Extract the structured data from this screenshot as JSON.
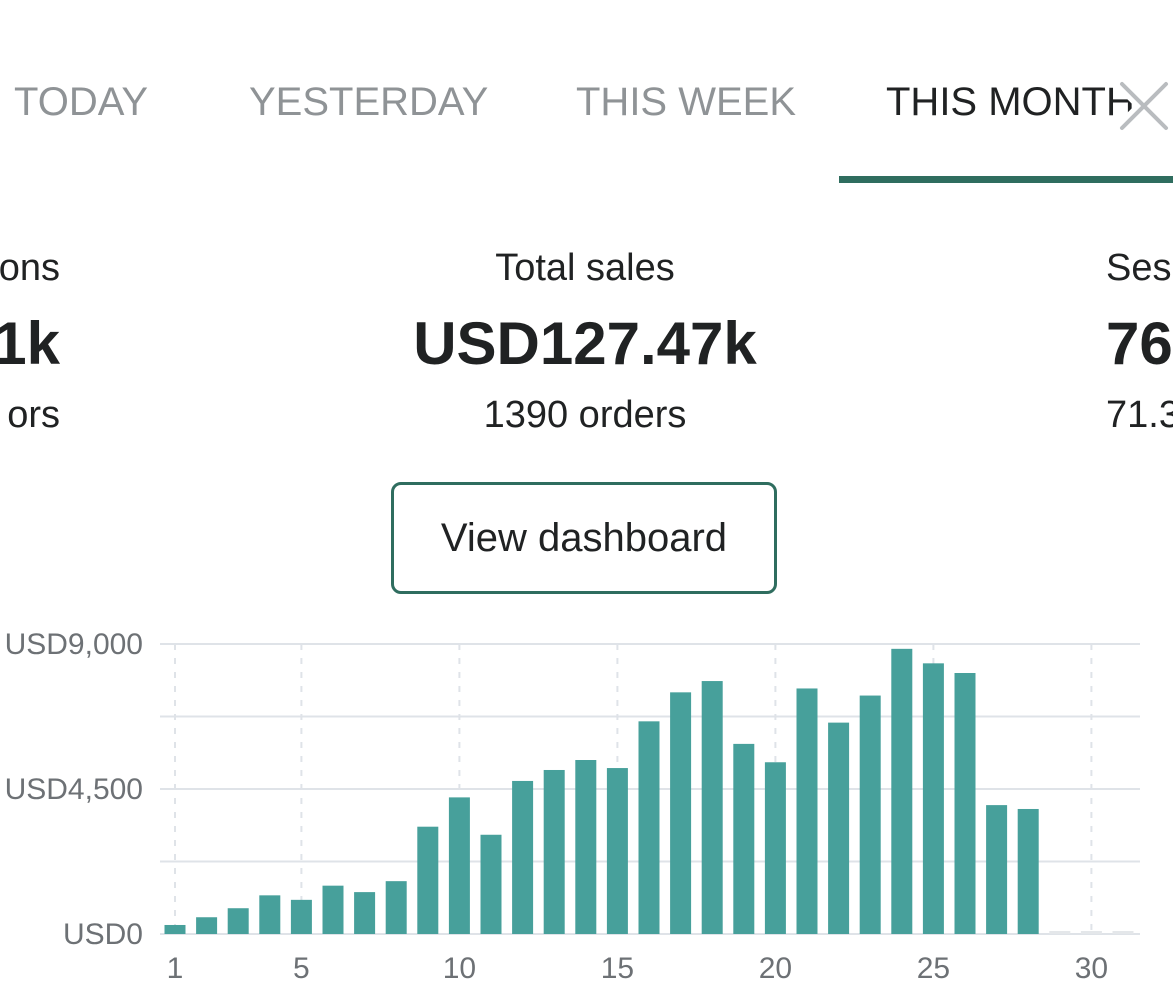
{
  "tabs": [
    {
      "label": "TODAY",
      "active": false
    },
    {
      "label": "YESTERDAY",
      "active": false
    },
    {
      "label": "THIS WEEK",
      "active": false
    },
    {
      "label": "THIS MONTH",
      "active": true
    }
  ],
  "metrics": {
    "left": {
      "label": "ons",
      "value": "1k",
      "sub": "ors"
    },
    "center": {
      "label": "Total sales",
      "value": "USD127.47k",
      "sub": "1390 orders"
    },
    "right": {
      "label": "Ses",
      "value": "76",
      "sub": "71.3"
    }
  },
  "dashboard_button": {
    "label": "View dashboard"
  },
  "colors": {
    "accent": "#2f6d5f",
    "bar": "#47a09b",
    "grid": "#dfe3e8",
    "tab_inactive": "#8f9396",
    "text": "#202223"
  },
  "chart_data": {
    "type": "bar",
    "categories": [
      1,
      2,
      3,
      4,
      5,
      6,
      7,
      8,
      9,
      10,
      11,
      12,
      13,
      14,
      15,
      16,
      17,
      18,
      19,
      20,
      21,
      22,
      23,
      24,
      25,
      26,
      27,
      28,
      29,
      30,
      31
    ],
    "x_tick_labels": [
      "1",
      "5",
      "10",
      "15",
      "20",
      "25",
      "30"
    ],
    "y_tick_labels": [
      "USD0",
      "USD4,500",
      "USD9,000"
    ],
    "ylim": [
      0,
      9000
    ],
    "values": [
      280,
      520,
      800,
      1200,
      1060,
      1500,
      1300,
      1640,
      3330,
      4240,
      3080,
      4750,
      5090,
      5400,
      5150,
      6600,
      7500,
      7850,
      5900,
      5330,
      7620,
      6560,
      7400,
      8850,
      8400,
      8100,
      4000,
      3880,
      0,
      0,
      0
    ],
    "grid": true
  }
}
